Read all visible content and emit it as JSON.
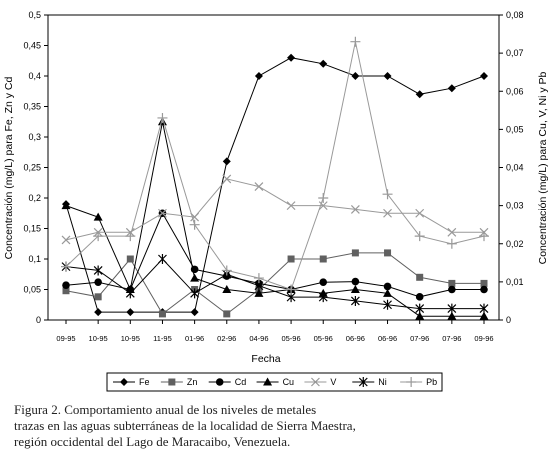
{
  "chart_data": {
    "type": "line",
    "categories": [
      "09-95",
      "10-95",
      "10-95",
      "11-95",
      "01-96",
      "02-96",
      "04-96",
      "05-96",
      "05-96",
      "06-96",
      "06-96",
      "07-96",
      "07-96",
      "09-96"
    ],
    "xlabel": "Fecha",
    "ylabel_left": "Concentración (mg/L) para Fe, Zn y Cd",
    "ylabel_right": "Concentración (mg/L) para Cu, V, Ni y Pb",
    "ylim_left": [
      0,
      0.5
    ],
    "ylim_right": [
      0,
      0.08
    ],
    "yticks_left": [
      "0",
      "0,05",
      "0,1",
      "0,15",
      "0,2",
      "0,25",
      "0,3",
      "0,35",
      "0,4",
      "0,45",
      "0,5"
    ],
    "yticks_right": [
      "0",
      "0,01",
      "0,02",
      "0,03",
      "0,04",
      "0,05",
      "0,06",
      "0,07",
      "0,08"
    ],
    "grid": false,
    "legend_position": "bottom",
    "series": [
      {
        "name": "Fe",
        "axis": "left",
        "marker": "diamond",
        "color": "#000000",
        "line_color": "#000000",
        "values": [
          0.19,
          0.013,
          0.013,
          0.013,
          0.013,
          0.26,
          0.4,
          0.43,
          0.42,
          0.4,
          0.4,
          0.37,
          0.38,
          0.4
        ]
      },
      {
        "name": "Zn",
        "axis": "left",
        "marker": "square",
        "color": "#606060",
        "line_color": "#606060",
        "values": [
          0.048,
          0.038,
          0.1,
          0.01,
          0.05,
          0.01,
          0.05,
          0.1,
          0.1,
          0.11,
          0.11,
          0.07,
          0.06,
          0.06
        ]
      },
      {
        "name": "Cd",
        "axis": "left",
        "marker": "circle",
        "color": "#000000",
        "line_color": "#000000",
        "values": [
          0.057,
          0.062,
          0.05,
          0.175,
          0.083,
          0.072,
          0.06,
          0.05,
          0.062,
          0.063,
          0.055,
          0.038,
          0.05,
          0.05
        ]
      },
      {
        "name": "Cu",
        "axis": "right",
        "marker": "triangle",
        "color": "#000000",
        "line_color": "#000000",
        "values": [
          0.03,
          0.027,
          0.008,
          0.052,
          0.011,
          0.008,
          0.007,
          0.008,
          0.007,
          0.008,
          0.007,
          0.001,
          0.001,
          0.001
        ]
      },
      {
        "name": "V",
        "axis": "right",
        "marker": "x",
        "color": "#999999",
        "line_color": "#999999",
        "values": [
          0.021,
          0.023,
          0.023,
          0.028,
          0.027,
          0.037,
          0.035,
          0.03,
          0.03,
          0.029,
          0.028,
          0.028,
          0.023,
          0.023
        ]
      },
      {
        "name": "Ni",
        "axis": "right",
        "marker": "star",
        "color": "#000000",
        "line_color": "#000000",
        "values": [
          0.014,
          0.013,
          0.007,
          0.016,
          0.007,
          0.012,
          0.009,
          0.006,
          0.006,
          0.005,
          0.004,
          0.003,
          0.003,
          0.003
        ]
      },
      {
        "name": "Pb",
        "axis": "right",
        "marker": "plus",
        "color": "#999999",
        "line_color": "#999999",
        "values": [
          0.014,
          0.022,
          0.022,
          0.053,
          0.025,
          0.013,
          0.011,
          0.008,
          0.032,
          0.073,
          0.033,
          0.022,
          0.02,
          0.022
        ]
      }
    ]
  },
  "caption": {
    "line1": "Figura 2. Comportamiento anual de los niveles de metales",
    "line2": "trazas en las aguas subterráneas de la localidad de Sierra Maestra,",
    "line3": "región occidental del Lago de Maracaibo, Venezuela."
  }
}
